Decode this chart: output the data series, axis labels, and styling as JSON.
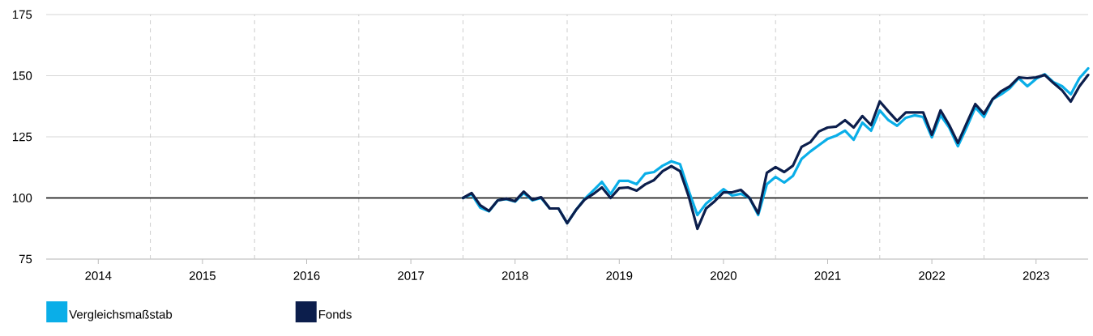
{
  "chart_data": {
    "type": "line",
    "x": [
      "2018-01",
      "2018-02",
      "2018-03",
      "2018-04",
      "2018-05",
      "2018-06",
      "2018-07",
      "2018-08",
      "2018-09",
      "2018-10",
      "2018-11",
      "2018-12",
      "2019-01",
      "2019-02",
      "2019-03",
      "2019-04",
      "2019-05",
      "2019-06",
      "2019-07",
      "2019-08",
      "2019-09",
      "2019-10",
      "2019-11",
      "2019-12",
      "2020-01",
      "2020-02",
      "2020-03",
      "2020-04",
      "2020-05",
      "2020-06",
      "2020-07",
      "2020-08",
      "2020-09",
      "2020-10",
      "2020-11",
      "2020-12",
      "2021-01",
      "2021-02",
      "2021-03",
      "2021-04",
      "2021-05",
      "2021-06",
      "2021-07",
      "2021-08",
      "2021-09",
      "2021-10",
      "2021-11",
      "2021-12",
      "2022-01",
      "2022-02",
      "2022-03",
      "2022-04",
      "2022-05",
      "2022-06",
      "2022-07",
      "2022-08",
      "2022-09",
      "2022-10",
      "2022-11",
      "2022-12",
      "2023-01",
      "2023-02",
      "2023-03",
      "2023-04",
      "2023-05",
      "2023-06",
      "2023-07",
      "2023-08",
      "2023-09",
      "2023-10",
      "2023-11",
      "2023-12",
      "2024-01"
    ],
    "series": [
      {
        "name": "Vergleichsmaßstab",
        "color": "#0aaee8",
        "values": [
          100,
          101.5,
          96,
          94.5,
          99,
          99.5,
          98.5,
          102,
          99,
          100,
          95.7,
          95.7,
          89.7,
          95,
          99.5,
          103,
          106.6,
          101.6,
          107,
          107,
          105.6,
          110,
          110.6,
          113.2,
          115,
          113.8,
          102.9,
          93,
          97.7,
          100.6,
          103.6,
          101,
          101.7,
          100,
          93,
          105.6,
          108.6,
          106.3,
          109,
          116,
          119,
          121.6,
          124.2,
          125.5,
          127.5,
          123.8,
          130.8,
          127.5,
          135.8,
          131.8,
          129.5,
          132.8,
          133.8,
          133.1,
          124.8,
          133.8,
          128.8,
          121.2,
          128.8,
          137,
          133.1,
          140.4,
          142.4,
          145,
          149,
          145.7,
          148.7,
          150.6,
          147.4,
          145.7,
          142.4,
          149,
          153
        ]
      },
      {
        "name": "Fonds",
        "color": "#0c1e4c",
        "values": [
          100,
          102,
          97,
          94.7,
          99,
          99.7,
          98.7,
          102.6,
          99.3,
          100.3,
          95.7,
          95.7,
          89.7,
          95,
          99.3,
          101.6,
          104.3,
          100,
          104,
          104.3,
          103,
          105.6,
          107.3,
          111,
          113,
          111,
          100.6,
          87.4,
          95.7,
          98.7,
          102.3,
          102.3,
          103.3,
          100,
          93.7,
          110.3,
          112.6,
          110.6,
          113.2,
          120.9,
          122.8,
          127.2,
          128.8,
          129.2,
          131.8,
          128.8,
          133.5,
          129.8,
          139.5,
          135.4,
          131.5,
          135,
          135,
          135,
          125.8,
          135.8,
          129.8,
          122.5,
          130.5,
          138.4,
          134.4,
          140.4,
          143.7,
          145.7,
          149.3,
          149,
          149.3,
          150.3,
          147,
          144,
          139.4,
          145.7,
          150.3
        ]
      }
    ],
    "xlim": [
      "2014-01",
      "2024-01"
    ],
    "xticks": [
      {
        "value": "2014-07",
        "label": "2014"
      },
      {
        "value": "2015-01",
        "label": null
      },
      {
        "value": "2015-07",
        "label": "2015"
      },
      {
        "value": "2016-01",
        "label": null
      },
      {
        "value": "2016-07",
        "label": "2016"
      },
      {
        "value": "2017-01",
        "label": null
      },
      {
        "value": "2017-07",
        "label": "2017"
      },
      {
        "value": "2018-01",
        "label": null
      },
      {
        "value": "2018-07",
        "label": "2018"
      },
      {
        "value": "2019-01",
        "label": null
      },
      {
        "value": "2019-07",
        "label": "2019"
      },
      {
        "value": "2020-01",
        "label": null
      },
      {
        "value": "2020-07",
        "label": "2020"
      },
      {
        "value": "2021-01",
        "label": null
      },
      {
        "value": "2021-07",
        "label": "2021"
      },
      {
        "value": "2022-01",
        "label": null
      },
      {
        "value": "2022-07",
        "label": "2022"
      },
      {
        "value": "2023-01",
        "label": null
      },
      {
        "value": "2023-07",
        "label": "2023"
      }
    ],
    "ylim": [
      75,
      175
    ],
    "yticks": [
      75,
      100,
      125,
      150,
      175
    ],
    "ref_lines": [
      {
        "axis": "y",
        "value": 100,
        "color": "#000000"
      }
    ],
    "grid": true,
    "legend": "bottom",
    "line_style": "solid"
  }
}
